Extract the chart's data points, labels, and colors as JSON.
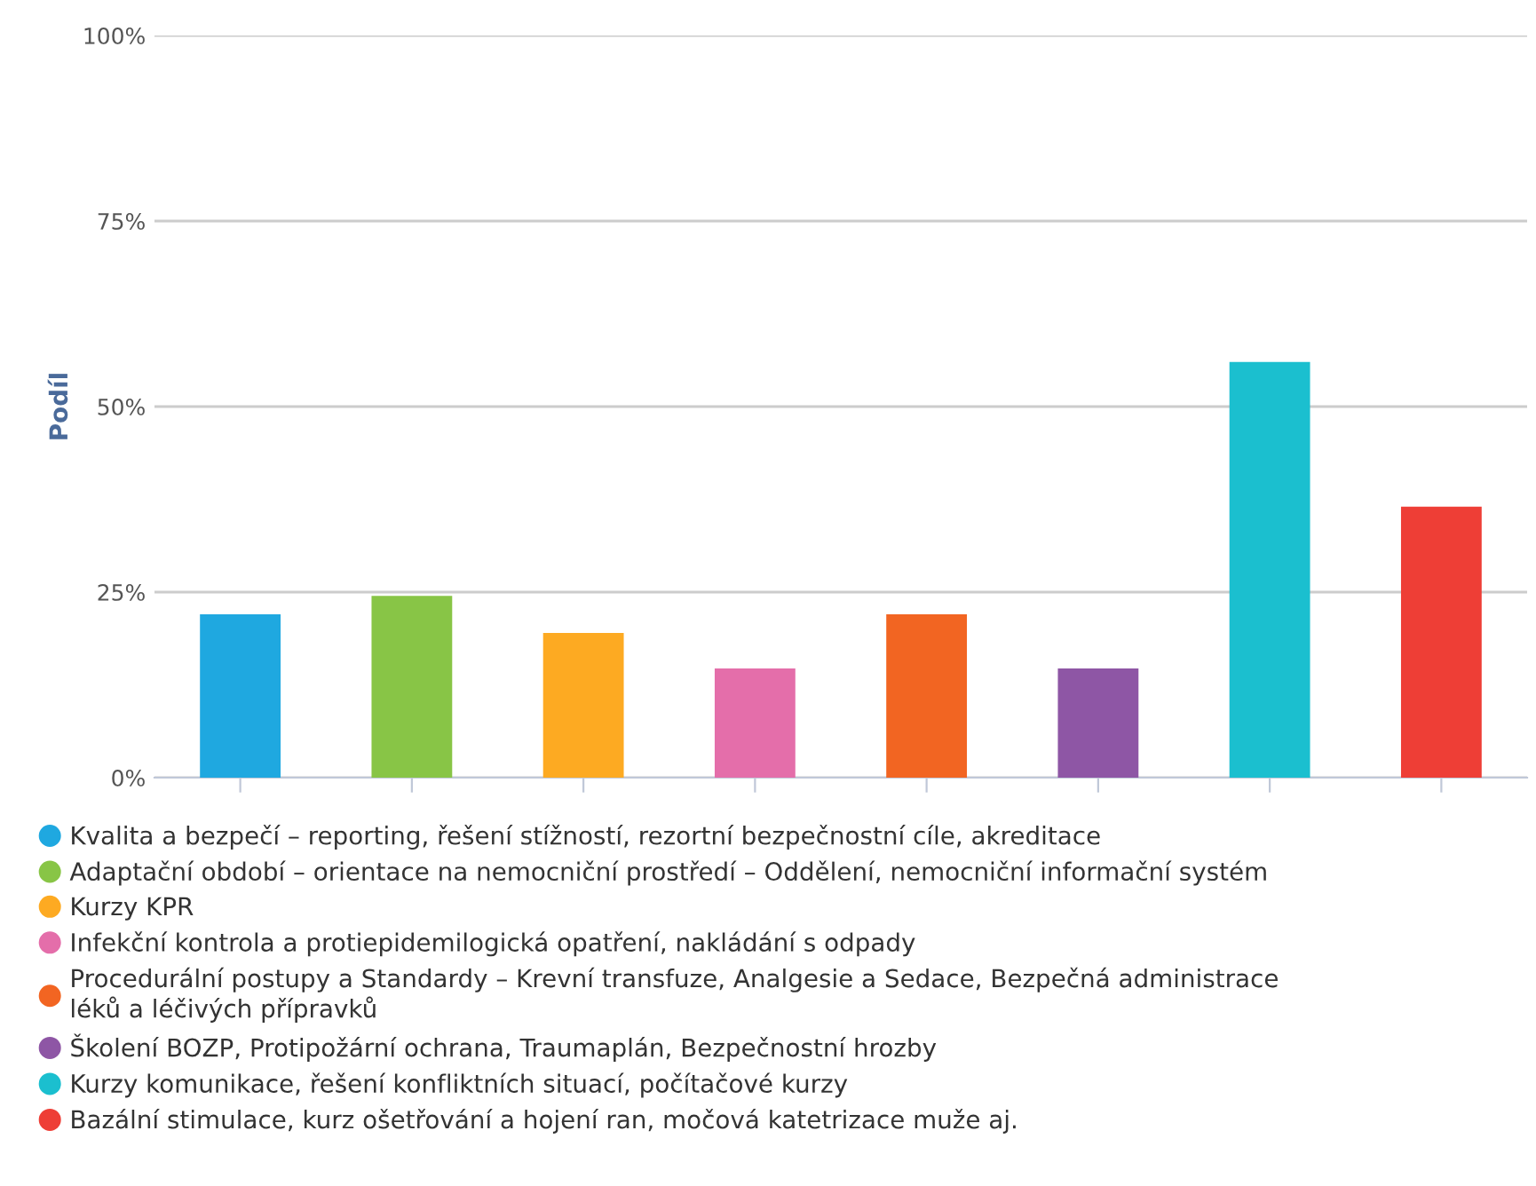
{
  "chart_data": {
    "type": "bar",
    "ylabel": "Podíl",
    "categories": [
      null,
      null,
      null,
      null,
      null,
      null,
      null,
      null
    ],
    "series": [
      {
        "name": "Kvalita a bezpečí – reporting, řešení stížností, rezortní bezpečnostní cíle, akreditace",
        "color": "#1fa8e0",
        "values": [
          22,
          null,
          null,
          null,
          null,
          null,
          null,
          null
        ]
      },
      {
        "name": "Adaptační období – orientace na nemocniční prostředí – Oddělení, nemocniční informační systém",
        "color": "#88c546",
        "values": [
          null,
          24.5,
          null,
          null,
          null,
          null,
          null,
          null
        ]
      },
      {
        "name": "Kurzy KPR",
        "color": "#fdaa22",
        "values": [
          null,
          null,
          19.5,
          null,
          null,
          null,
          null,
          null
        ]
      },
      {
        "name": "Infekční kontrola a protiepidemilogická opatření, nakládání s odpady",
        "color": "#e46eaa",
        "values": [
          null,
          null,
          null,
          14.7,
          null,
          null,
          null,
          null
        ]
      },
      {
        "name": "Procedurální postupy a Standardy – Krevní transfuze, Analgesie a Sedace, Bezpečná administrace léků a léčivých přípravků",
        "color": "#f26522",
        "values": [
          null,
          null,
          null,
          null,
          22,
          null,
          null,
          null
        ]
      },
      {
        "name": "Školení BOZP, Protipožární ochrana, Traumaplán, Bezpečnostní hrozby",
        "color": "#8e56a5",
        "values": [
          null,
          null,
          null,
          null,
          null,
          14.7,
          null,
          null
        ]
      },
      {
        "name": "Kurzy komunikace, řešení konfliktních situací, počítačové kurzy",
        "color": "#1bbfcf",
        "values": [
          null,
          null,
          null,
          null,
          null,
          null,
          56,
          null
        ]
      },
      {
        "name": "Bazální stimulace, kurz ošetřování a hojení ran, močová katetrizace muže aj.",
        "color": "#ee3e36",
        "values": [
          null,
          null,
          null,
          null,
          null,
          null,
          null,
          36.5
        ]
      }
    ],
    "ylim": [
      0,
      100
    ],
    "yticks": [
      {
        "value": 0,
        "label": "0%"
      },
      {
        "value": 25,
        "label": "25%"
      },
      {
        "value": 50,
        "label": "50%"
      },
      {
        "value": 75,
        "label": "75%"
      },
      {
        "value": 100,
        "label": "100%"
      }
    ],
    "grid": "y",
    "legend": "bottom",
    "tick_labels": "y"
  }
}
